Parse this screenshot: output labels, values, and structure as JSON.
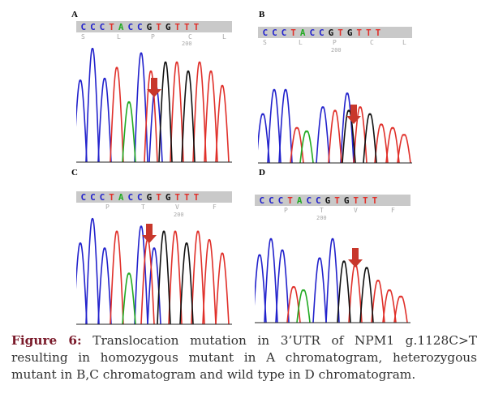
{
  "panels": [
    {
      "label": "A",
      "bases": [
        "C",
        "C",
        "C",
        "T",
        "A",
        "C",
        "C",
        "G",
        "T",
        "G",
        "T",
        "T",
        "T"
      ],
      "aa": [
        "S",
        "L",
        "P",
        "C",
        "L"
      ],
      "pos": "200"
    },
    {
      "label": "B",
      "bases": [
        "C",
        "C",
        "C",
        "T",
        "A",
        "C",
        "C",
        "G",
        "T",
        "G",
        "T",
        "T",
        "T"
      ],
      "aa": [
        "S",
        "L",
        "P",
        "C",
        "L"
      ],
      "pos": "200"
    },
    {
      "label": "C",
      "bases": [
        "C",
        "C",
        "C",
        "T",
        "A",
        "C",
        "C",
        "G",
        "T",
        "G",
        "T",
        "T",
        "T"
      ],
      "aa": [
        "P",
        "T",
        "V",
        "F"
      ],
      "pos": "200"
    },
    {
      "label": "D",
      "bases": [
        "C",
        "C",
        "C",
        "T",
        "A",
        "C",
        "C",
        "G",
        "T",
        "G",
        "T",
        "T",
        "T"
      ],
      "aa": [
        "P",
        "T",
        "V",
        "F"
      ],
      "pos": "200"
    }
  ],
  "caption": {
    "lead": "Figure 6:",
    "text": " Translocation mutation  in 3’UTR of NPM1 g.1128C>T resulting in homozygous mutant in A chromatogram, heterozygous mutant in B,C chromatogram and wild type in D chromatogram."
  },
  "colors": {
    "C": "#2222cc",
    "T": "#e0302a",
    "A": "#22aa22",
    "G": "#111111",
    "arrow": "#c8372b"
  }
}
